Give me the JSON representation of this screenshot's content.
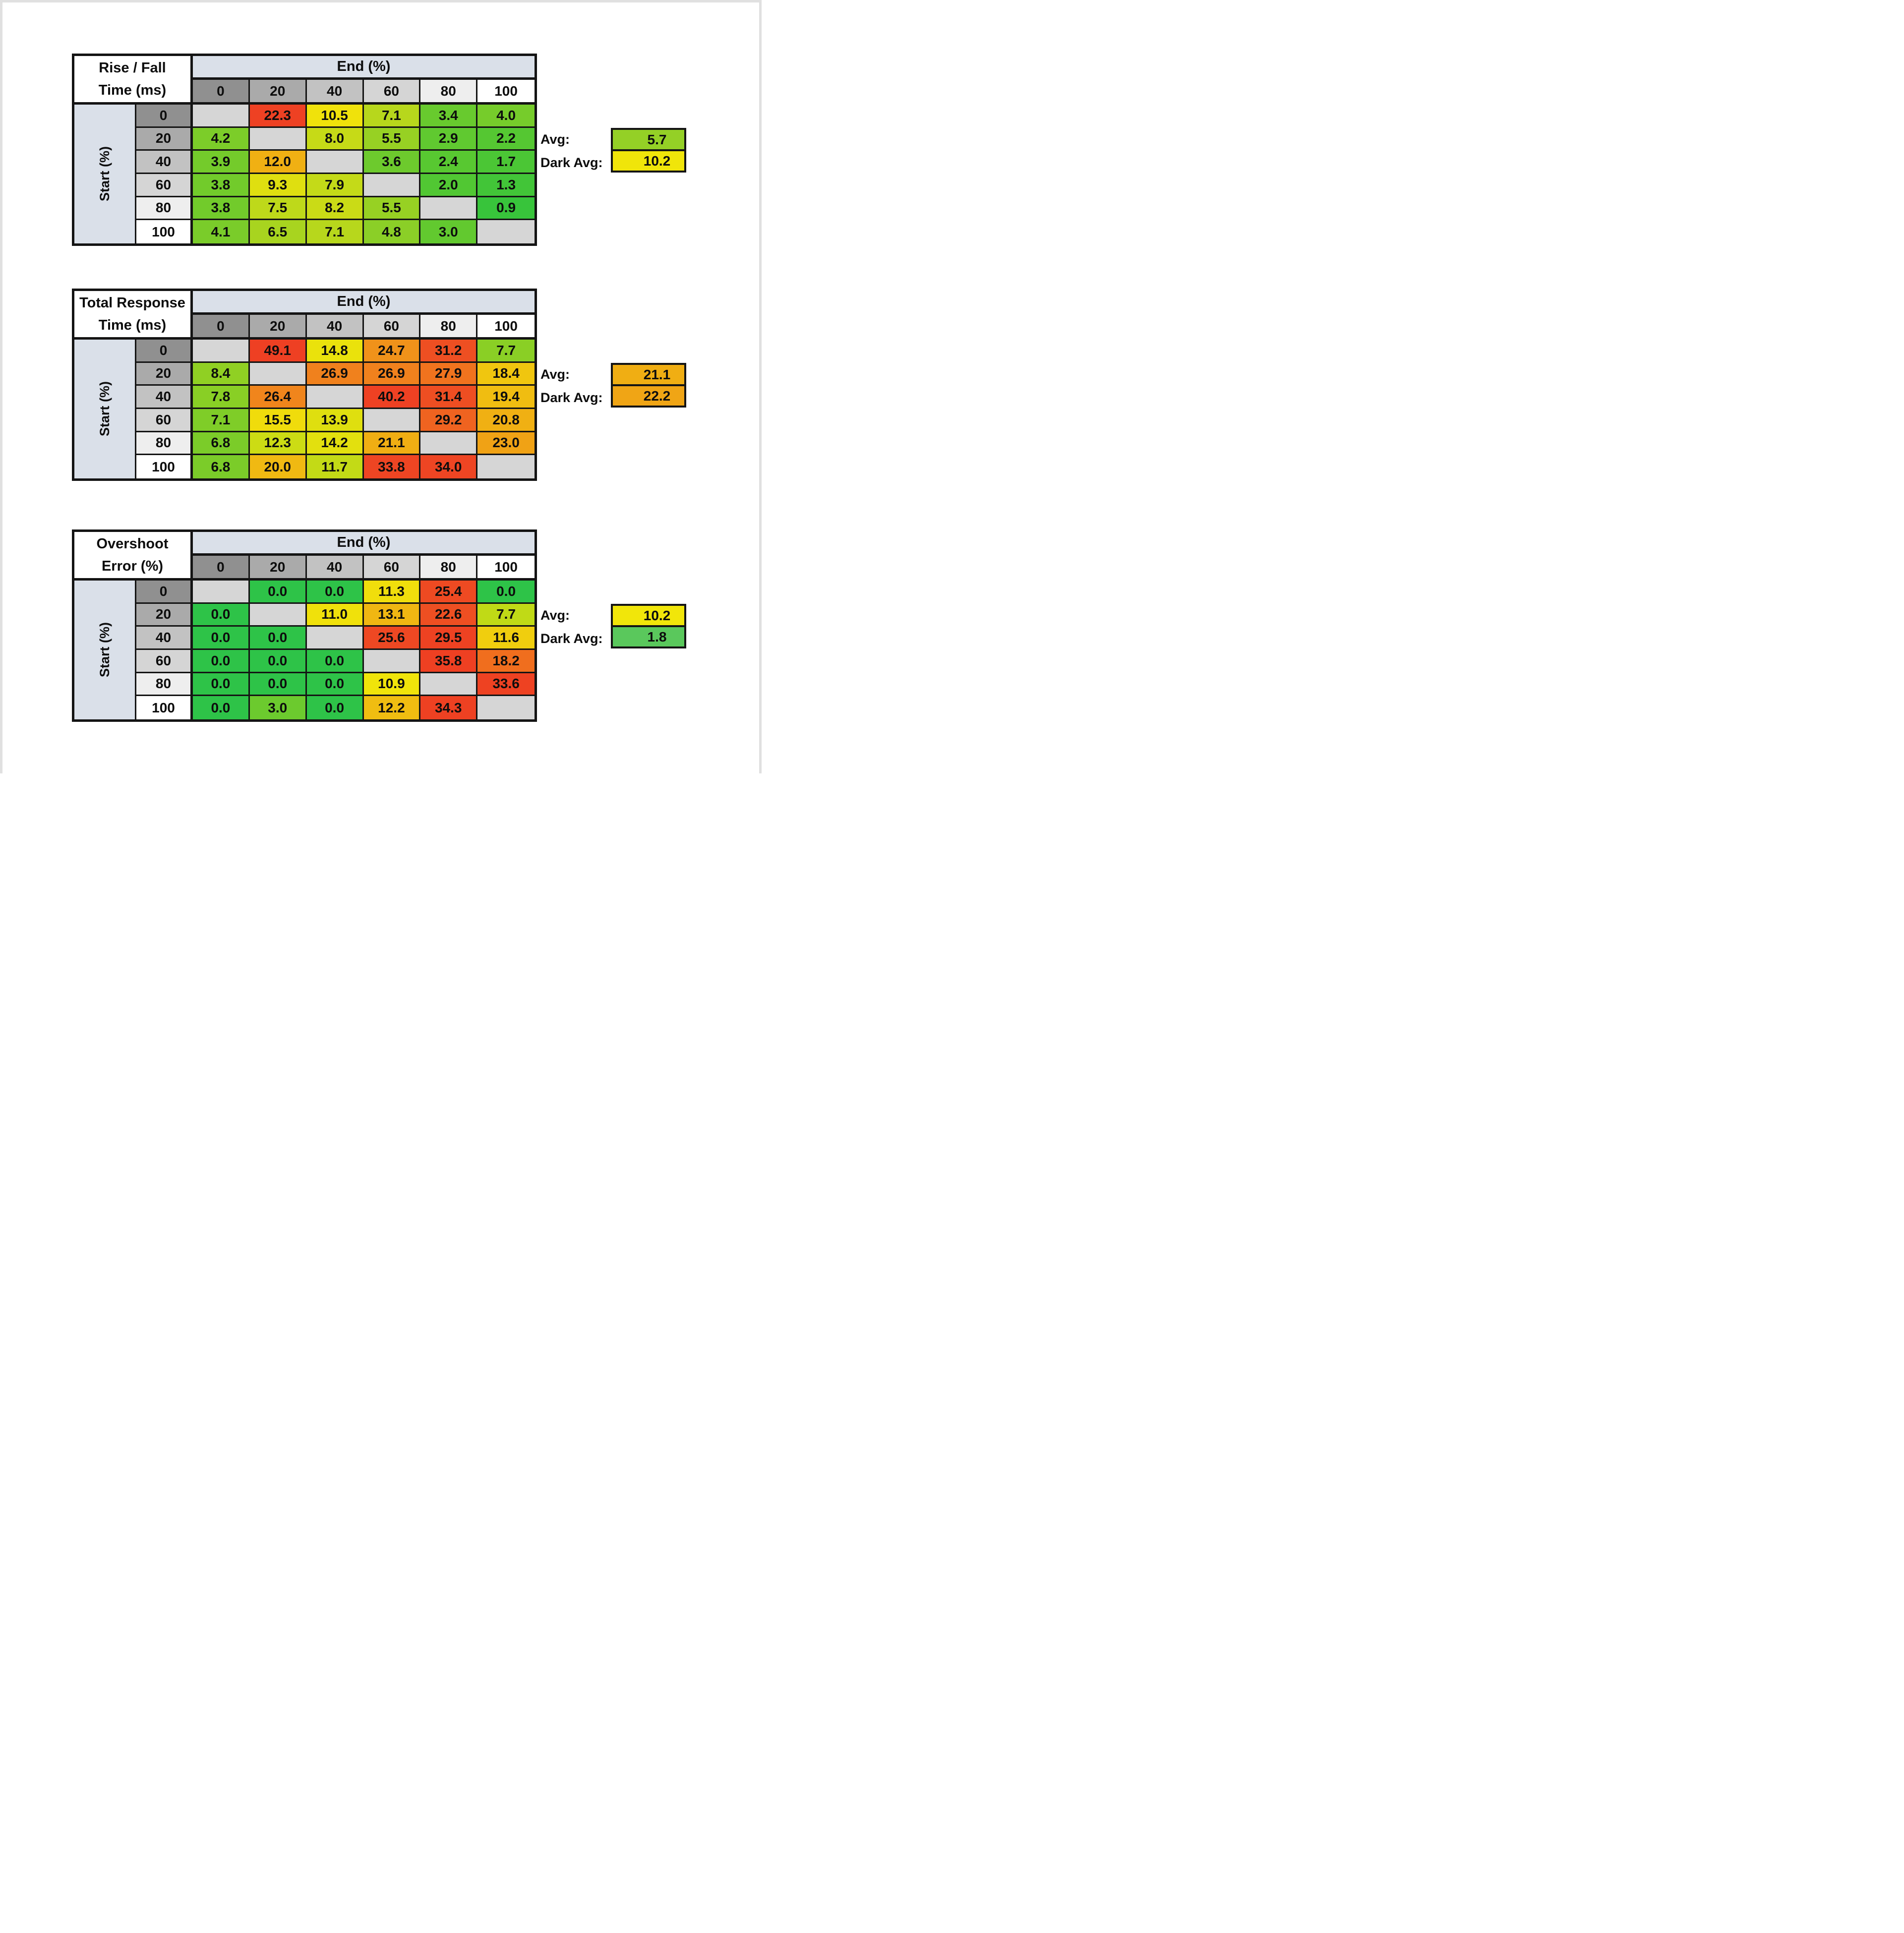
{
  "page": {
    "background": "#FFFFFF",
    "edge_color": "#E0E0E0"
  },
  "colors": {
    "band": "#DAE0E9",
    "header_grays": [
      "#909090",
      "#AAAAAA",
      "#C2C2C2",
      "#D5D5D5",
      "#EEEEEE",
      "#FFFFFF"
    ],
    "diagonal": "#D6D6D6",
    "border": "#141414",
    "text": "#0D0D0D"
  },
  "chart_data": [
    {
      "type": "heatmap",
      "title": "Rise / Fall Time (ms)",
      "title_lines": [
        "Rise / Fall",
        "Time (ms)"
      ],
      "xlabel": "End (%)",
      "ylabel": "Start (%)",
      "x_categories": [
        "0",
        "20",
        "40",
        "60",
        "80",
        "100"
      ],
      "y_categories": [
        "0",
        "20",
        "40",
        "60",
        "80",
        "100"
      ],
      "values": [
        [
          null,
          22.3,
          10.5,
          7.1,
          3.4,
          4.0
        ],
        [
          4.2,
          null,
          8.0,
          5.5,
          2.9,
          2.2
        ],
        [
          3.9,
          12.0,
          null,
          3.6,
          2.4,
          1.7
        ],
        [
          3.8,
          9.3,
          7.9,
          null,
          2.0,
          1.3
        ],
        [
          3.8,
          7.5,
          8.2,
          5.5,
          null,
          0.9
        ],
        [
          4.1,
          6.5,
          7.1,
          4.8,
          3.0,
          null
        ]
      ],
      "cell_colors": [
        [
          null,
          "#EE4123",
          "#F0E20B",
          "#B7D71C",
          "#68CA2E",
          "#76CC2B"
        ],
        [
          "#7CCD29",
          null,
          "#C6DA17",
          "#97D123",
          "#60C930",
          "#55C732"
        ],
        [
          "#74CB2B",
          "#F0B013",
          null,
          "#6DCA2D",
          "#58C831",
          "#4BC635"
        ],
        [
          "#72CB2B",
          "#DFDF10",
          "#C4DA18",
          null,
          "#51C733",
          "#42C538"
        ],
        [
          "#72CB2B",
          "#BED91A",
          "#CADB16",
          "#97D123",
          null,
          "#38C43B"
        ],
        [
          "#7ACC2A",
          "#A8D41F",
          "#B7D71C",
          "#8BCF27",
          "#62C92F",
          null
        ]
      ],
      "avg": {
        "label": "Avg:",
        "value": 5.7,
        "color": "#94D026"
      },
      "dark_avg": {
        "label": "Dark Avg:",
        "value": 10.2,
        "color": "#F0E50A"
      }
    },
    {
      "type": "heatmap",
      "title": "Total Response Time (ms)",
      "title_lines": [
        "Total Response",
        "Time (ms)"
      ],
      "xlabel": "End (%)",
      "ylabel": "Start (%)",
      "x_categories": [
        "0",
        "20",
        "40",
        "60",
        "80",
        "100"
      ],
      "y_categories": [
        "0",
        "20",
        "40",
        "60",
        "80",
        "100"
      ],
      "values": [
        [
          null,
          49.1,
          14.8,
          24.7,
          31.2,
          7.7
        ],
        [
          8.4,
          null,
          26.9,
          26.9,
          27.9,
          18.4
        ],
        [
          7.8,
          26.4,
          null,
          40.2,
          31.4,
          19.4
        ],
        [
          7.1,
          15.5,
          13.9,
          null,
          29.2,
          20.8
        ],
        [
          6.8,
          12.3,
          14.2,
          21.1,
          null,
          23.0
        ],
        [
          6.8,
          20.0,
          11.7,
          33.8,
          34.0,
          null
        ]
      ],
      "cell_colors": [
        [
          null,
          "#EE4023",
          "#EAE20C",
          "#F0921A",
          "#EE4F22",
          "#8ACF25"
        ],
        [
          "#90D023",
          null,
          "#F0811D",
          "#F0811D",
          "#F0731E",
          "#F0C60F"
        ],
        [
          "#89CF25",
          "#F0851C",
          null,
          "#EE4123",
          "#EE4E22",
          "#F0BD11"
        ],
        [
          "#7FCD28",
          "#F0DC0C",
          "#DFDF0F",
          null,
          "#EF6320",
          "#F0B013"
        ],
        [
          "#7BCC29",
          "#CCDC14",
          "#E3E00E",
          "#F0AE13",
          null,
          "#F0A215"
        ],
        [
          "#7BCC29",
          "#F0B912",
          "#C3DA16",
          "#EE4523",
          "#EE4523",
          null
        ]
      ],
      "avg": {
        "label": "Avg:",
        "value": 21.1,
        "color": "#F0AE13"
      },
      "dark_avg": {
        "label": "Dark Avg:",
        "value": 22.2,
        "color": "#F0A515"
      }
    },
    {
      "type": "heatmap",
      "title": "Overshoot Error (%)",
      "title_lines": [
        "Overshoot",
        "Error (%)"
      ],
      "xlabel": "End (%)",
      "ylabel": "Start (%)",
      "x_categories": [
        "0",
        "20",
        "40",
        "60",
        "80",
        "100"
      ],
      "y_categories": [
        "0",
        "20",
        "40",
        "60",
        "80",
        "100"
      ],
      "values": [
        [
          null,
          0.0,
          0.0,
          11.3,
          25.4,
          0.0
        ],
        [
          0.0,
          null,
          11.0,
          13.1,
          22.6,
          7.7
        ],
        [
          0.0,
          0.0,
          null,
          25.6,
          29.5,
          11.6
        ],
        [
          0.0,
          0.0,
          0.0,
          null,
          35.8,
          18.2
        ],
        [
          0.0,
          0.0,
          0.0,
          10.9,
          null,
          33.6
        ],
        [
          0.0,
          3.0,
          0.0,
          12.2,
          34.3,
          null
        ]
      ],
      "cell_colors": [
        [
          null,
          "#2EC348",
          "#2EC348",
          "#F0DE0C",
          "#EE4A22",
          "#2EC348"
        ],
        [
          "#2EC348",
          null,
          "#F0E10B",
          "#F0B712",
          "#EE4F22",
          "#C0DA16"
        ],
        [
          "#2EC348",
          "#2EC348",
          null,
          "#EE4823",
          "#EE4222",
          "#F0CE0E"
        ],
        [
          "#2EC348",
          "#2EC348",
          "#2EC348",
          null,
          "#EE4022",
          "#F06E1E"
        ],
        [
          "#2EC348",
          "#2EC348",
          "#2EC348",
          "#F0E40A",
          null,
          "#EE4222"
        ],
        [
          "#2EC348",
          "#6CCA2E",
          "#2EC348",
          "#F0BD11",
          "#EE4122",
          null
        ]
      ],
      "avg": {
        "label": "Avg:",
        "value": 10.2,
        "color": "#F1E60A"
      },
      "dark_avg": {
        "label": "Dark Avg:",
        "value": 1.8,
        "color": "#5AC85C"
      }
    }
  ]
}
